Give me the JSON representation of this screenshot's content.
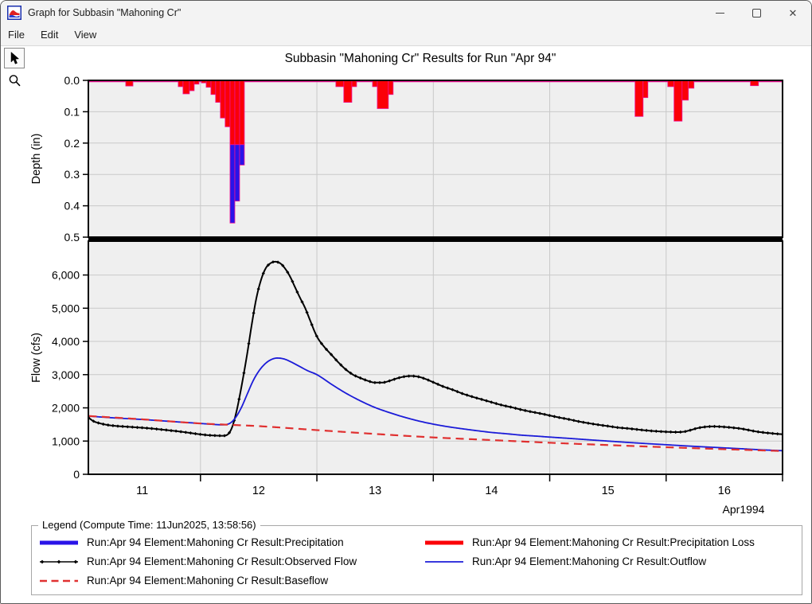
{
  "window": {
    "title": "Graph for Subbasin \"Mahoning Cr\"",
    "controls": [
      {
        "name": "minimize",
        "glyph": "–"
      },
      {
        "name": "maximize",
        "glyph": "▭"
      },
      {
        "name": "close",
        "glyph": "✕"
      }
    ],
    "app_icon": "hms-hydrograph-icon"
  },
  "menu": {
    "items": [
      "File",
      "Edit",
      "View"
    ]
  },
  "toolbar": {
    "tools": [
      {
        "name": "pointer",
        "icon": "arrow-pointer-icon",
        "selected": true
      },
      {
        "name": "zoom",
        "icon": "magnifier-icon",
        "selected": false
      }
    ]
  },
  "colors": {
    "precip_bar": "#2a13e8",
    "loss_bar": "#fb0007",
    "bar_outline": "#ee1295",
    "observed": "#000000",
    "outflow": "#1b1bd8",
    "baseflow": "#e03030",
    "grid": "#c9c9c9",
    "panel_bg": "#efefef",
    "axis": "#000000"
  },
  "chart_data": {
    "type": "combo",
    "title": "Subbasin \"Mahoning Cr\" Results for Run \"Apr 94\"",
    "x_axis": {
      "label": "Apr1994",
      "range_days": [
        11.037,
        17.0
      ],
      "day_boundaries": [
        12,
        13,
        14,
        15,
        16,
        17
      ],
      "day_labels": [
        {
          "day_center": 11.5,
          "label": "11"
        },
        {
          "day_center": 12.5,
          "label": "12"
        },
        {
          "day_center": 13.5,
          "label": "13"
        },
        {
          "day_center": 14.5,
          "label": "14"
        },
        {
          "day_center": 15.5,
          "label": "15"
        },
        {
          "day_center": 16.5,
          "label": "16"
        }
      ]
    },
    "precip_panel": {
      "type": "bar",
      "ylabel": "Depth (in)",
      "ylim": [
        0.0,
        0.5
      ],
      "ticks": [
        {
          "value": 0.0,
          "label": "0.0"
        },
        {
          "value": 0.1,
          "label": "0.1"
        },
        {
          "value": 0.2,
          "label": "0.2"
        },
        {
          "value": 0.3,
          "label": "0.3"
        },
        {
          "value": 0.4,
          "label": "0.4"
        },
        {
          "value": 0.5,
          "label": "0.5"
        }
      ],
      "bars_note": "t1,t2 = start/end (April day decimal); loss = red depth (in); excess = blue depth below loss (in)",
      "bars": [
        {
          "t1": 11.358,
          "t2": 11.42,
          "loss": 0.018,
          "excess": 0
        },
        {
          "t1": 11.809,
          "t2": 11.85,
          "loss": 0.02,
          "excess": 0
        },
        {
          "t1": 11.85,
          "t2": 11.905,
          "loss": 0.043,
          "excess": 0
        },
        {
          "t1": 11.905,
          "t2": 11.946,
          "loss": 0.033,
          "excess": 0
        },
        {
          "t1": 11.946,
          "t2": 11.987,
          "loss": 0.012,
          "excess": 0
        },
        {
          "t1": 12.008,
          "t2": 12.049,
          "loss": 0.008,
          "excess": 0
        },
        {
          "t1": 12.049,
          "t2": 12.09,
          "loss": 0.022,
          "excess": 0
        },
        {
          "t1": 12.09,
          "t2": 12.13,
          "loss": 0.045,
          "excess": 0
        },
        {
          "t1": 12.13,
          "t2": 12.171,
          "loss": 0.07,
          "excess": 0
        },
        {
          "t1": 12.171,
          "t2": 12.212,
          "loss": 0.12,
          "excess": 0
        },
        {
          "t1": 12.212,
          "t2": 12.254,
          "loss": 0.148,
          "excess": 0
        },
        {
          "t1": 12.254,
          "t2": 12.295,
          "loss": 0.205,
          "excess": 0.25
        },
        {
          "t1": 12.295,
          "t2": 12.336,
          "loss": 0.205,
          "excess": 0.18
        },
        {
          "t1": 12.336,
          "t2": 12.377,
          "loss": 0.205,
          "excess": 0.065
        },
        {
          "t1": 13.163,
          "t2": 13.231,
          "loss": 0.02,
          "excess": 0
        },
        {
          "t1": 13.231,
          "t2": 13.3,
          "loss": 0.07,
          "excess": 0
        },
        {
          "t1": 13.3,
          "t2": 13.341,
          "loss": 0.02,
          "excess": 0
        },
        {
          "t1": 13.478,
          "t2": 13.519,
          "loss": 0.02,
          "excess": 0
        },
        {
          "t1": 13.519,
          "t2": 13.614,
          "loss": 0.09,
          "excess": 0
        },
        {
          "t1": 13.614,
          "t2": 13.655,
          "loss": 0.045,
          "excess": 0
        },
        {
          "t1": 15.733,
          "t2": 15.802,
          "loss": 0.115,
          "excess": 0
        },
        {
          "t1": 15.802,
          "t2": 15.843,
          "loss": 0.055,
          "excess": 0
        },
        {
          "t1": 16.014,
          "t2": 16.068,
          "loss": 0.02,
          "excess": 0
        },
        {
          "t1": 16.068,
          "t2": 16.137,
          "loss": 0.13,
          "excess": 0
        },
        {
          "t1": 16.137,
          "t2": 16.191,
          "loss": 0.063,
          "excess": 0
        },
        {
          "t1": 16.191,
          "t2": 16.239,
          "loss": 0.025,
          "excess": 0
        },
        {
          "t1": 16.724,
          "t2": 16.793,
          "loss": 0.017,
          "excess": 0
        }
      ]
    },
    "flow_panel": {
      "type": "line",
      "ylabel": "Flow (cfs)",
      "ylim": [
        0,
        7020
      ],
      "ticks": [
        {
          "value": 0,
          "label": "0"
        },
        {
          "value": 1000,
          "label": "1,000"
        },
        {
          "value": 2000,
          "label": "2,000"
        },
        {
          "value": 3000,
          "label": "3,000"
        },
        {
          "value": 4000,
          "label": "4,000"
        },
        {
          "value": 5000,
          "label": "5,000"
        },
        {
          "value": 6000,
          "label": "6,000"
        }
      ],
      "series": [
        {
          "name": "Observed Flow",
          "style": "line-markers",
          "color_key": "observed",
          "points": [
            [
              11.04,
              1700
            ],
            [
              11.08,
              1600
            ],
            [
              11.13,
              1540
            ],
            [
              11.21,
              1480
            ],
            [
              11.29,
              1450
            ],
            [
              11.38,
              1430
            ],
            [
              11.46,
              1410
            ],
            [
              11.54,
              1390
            ],
            [
              11.63,
              1360
            ],
            [
              11.71,
              1330
            ],
            [
              11.79,
              1300
            ],
            [
              11.88,
              1260
            ],
            [
              11.96,
              1220
            ],
            [
              12.04,
              1185
            ],
            [
              12.13,
              1165
            ],
            [
              12.19,
              1160
            ],
            [
              12.23,
              1190
            ],
            [
              12.27,
              1400
            ],
            [
              12.31,
              1900
            ],
            [
              12.35,
              2600
            ],
            [
              12.4,
              3600
            ],
            [
              12.44,
              4500
            ],
            [
              12.48,
              5300
            ],
            [
              12.52,
              5850
            ],
            [
              12.56,
              6200
            ],
            [
              12.6,
              6350
            ],
            [
              12.64,
              6400
            ],
            [
              12.69,
              6340
            ],
            [
              12.73,
              6180
            ],
            [
              12.77,
              5950
            ],
            [
              12.81,
              5650
            ],
            [
              12.85,
              5350
            ],
            [
              12.9,
              5000
            ],
            [
              12.94,
              4650
            ],
            [
              13.0,
              4150
            ],
            [
              13.06,
              3850
            ],
            [
              13.13,
              3580
            ],
            [
              13.19,
              3350
            ],
            [
              13.25,
              3150
            ],
            [
              13.31,
              3000
            ],
            [
              13.38,
              2890
            ],
            [
              13.44,
              2810
            ],
            [
              13.5,
              2760
            ],
            [
              13.56,
              2760
            ],
            [
              13.63,
              2820
            ],
            [
              13.69,
              2890
            ],
            [
              13.75,
              2940
            ],
            [
              13.81,
              2960
            ],
            [
              13.88,
              2930
            ],
            [
              13.94,
              2860
            ],
            [
              14.0,
              2770
            ],
            [
              14.08,
              2650
            ],
            [
              14.17,
              2540
            ],
            [
              14.25,
              2430
            ],
            [
              14.33,
              2340
            ],
            [
              14.42,
              2250
            ],
            [
              14.5,
              2170
            ],
            [
              14.58,
              2090
            ],
            [
              14.67,
              2020
            ],
            [
              14.75,
              1950
            ],
            [
              14.83,
              1890
            ],
            [
              14.92,
              1830
            ],
            [
              15.0,
              1770
            ],
            [
              15.08,
              1710
            ],
            [
              15.17,
              1650
            ],
            [
              15.25,
              1590
            ],
            [
              15.33,
              1540
            ],
            [
              15.42,
              1490
            ],
            [
              15.5,
              1450
            ],
            [
              15.58,
              1410
            ],
            [
              15.67,
              1380
            ],
            [
              15.75,
              1350
            ],
            [
              15.83,
              1320
            ],
            [
              15.92,
              1295
            ],
            [
              16.0,
              1280
            ],
            [
              16.08,
              1270
            ],
            [
              16.15,
              1280
            ],
            [
              16.21,
              1330
            ],
            [
              16.27,
              1390
            ],
            [
              16.33,
              1425
            ],
            [
              16.4,
              1440
            ],
            [
              16.46,
              1435
            ],
            [
              16.52,
              1420
            ],
            [
              16.58,
              1400
            ],
            [
              16.65,
              1370
            ],
            [
              16.71,
              1330
            ],
            [
              16.77,
              1290
            ],
            [
              16.83,
              1260
            ],
            [
              16.9,
              1235
            ],
            [
              16.96,
              1215
            ],
            [
              17.0,
              1205
            ]
          ]
        },
        {
          "name": "Outflow",
          "style": "line",
          "color_key": "outflow",
          "points": [
            [
              11.04,
              1750
            ],
            [
              11.25,
              1700
            ],
            [
              11.5,
              1650
            ],
            [
              11.75,
              1590
            ],
            [
              12.0,
              1530
            ],
            [
              12.1,
              1505
            ],
            [
              12.18,
              1490
            ],
            [
              12.25,
              1530
            ],
            [
              12.3,
              1700
            ],
            [
              12.35,
              2000
            ],
            [
              12.4,
              2400
            ],
            [
              12.45,
              2800
            ],
            [
              12.5,
              3100
            ],
            [
              12.55,
              3310
            ],
            [
              12.6,
              3440
            ],
            [
              12.66,
              3500
            ],
            [
              12.72,
              3470
            ],
            [
              12.78,
              3380
            ],
            [
              12.85,
              3250
            ],
            [
              12.92,
              3120
            ],
            [
              13.0,
              3000
            ],
            [
              13.13,
              2700
            ],
            [
              13.25,
              2440
            ],
            [
              13.38,
              2200
            ],
            [
              13.5,
              2010
            ],
            [
              13.63,
              1850
            ],
            [
              13.75,
              1720
            ],
            [
              13.88,
              1600
            ],
            [
              14.0,
              1510
            ],
            [
              14.13,
              1430
            ],
            [
              14.25,
              1370
            ],
            [
              14.38,
              1310
            ],
            [
              14.5,
              1260
            ],
            [
              14.63,
              1220
            ],
            [
              14.75,
              1180
            ],
            [
              14.88,
              1150
            ],
            [
              15.0,
              1120
            ],
            [
              15.17,
              1080
            ],
            [
              15.33,
              1040
            ],
            [
              15.5,
              1000
            ],
            [
              15.67,
              960
            ],
            [
              15.83,
              925
            ],
            [
              16.0,
              890
            ],
            [
              16.17,
              855
            ],
            [
              16.33,
              825
            ],
            [
              16.5,
              795
            ],
            [
              16.67,
              765
            ],
            [
              16.83,
              735
            ],
            [
              17.0,
              710
            ]
          ]
        },
        {
          "name": "Baseflow",
          "style": "dashed",
          "color_key": "baseflow",
          "points": [
            [
              11.04,
              1755
            ],
            [
              11.5,
              1655
            ],
            [
              12.0,
              1530
            ],
            [
              12.25,
              1490
            ],
            [
              12.5,
              1450
            ],
            [
              13.0,
              1330
            ],
            [
              13.5,
              1215
            ],
            [
              14.0,
              1110
            ],
            [
              14.5,
              1030
            ],
            [
              15.0,
              950
            ],
            [
              15.5,
              880
            ],
            [
              16.0,
              815
            ],
            [
              16.5,
              755
            ],
            [
              17.0,
              700
            ]
          ]
        }
      ]
    }
  },
  "legend": {
    "title": "Legend (Compute Time: 11Jun2025, 13:58:56)",
    "items": [
      {
        "label": "Run:Apr 94 Element:Mahoning Cr Result:Precipitation",
        "key": "thick",
        "color_key": "precip_bar"
      },
      {
        "label": "Run:Apr 94 Element:Mahoning Cr Result:Precipitation Loss",
        "key": "thick",
        "color_key": "loss_bar"
      },
      {
        "label": "Run:Apr 94 Element:Mahoning Cr Result:Observed Flow",
        "key": "markers",
        "color_key": "observed"
      },
      {
        "label": "Run:Apr 94 Element:Mahoning Cr Result:Outflow",
        "key": "line",
        "color_key": "outflow"
      },
      {
        "label": "Run:Apr 94 Element:Mahoning Cr Result:Baseflow",
        "key": "dashed",
        "color_key": "baseflow"
      }
    ]
  }
}
